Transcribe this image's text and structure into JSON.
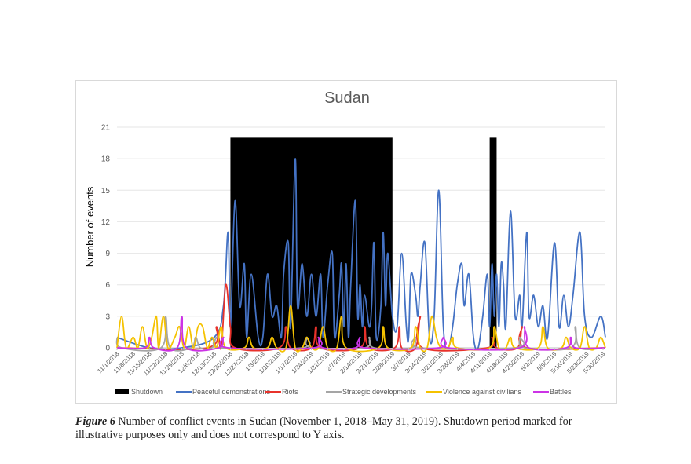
{
  "caption": {
    "label": "Figure 6",
    "text": " Number of conflict events in Sudan (November 1, 2018–May 31, 2019). Shutdown period marked for illustrative purposes only and does not correspond to Y axis."
  },
  "chart_data": {
    "type": "line",
    "title": "Sudan",
    "xlabel": "",
    "ylabel": "Number of events",
    "ylim": [
      0,
      21
    ],
    "yticks": [
      0,
      3,
      6,
      9,
      12,
      15,
      18,
      21
    ],
    "grid": "horizontal",
    "legend_position": "bottom",
    "x_start": "11/1/2018",
    "x_end": "5/31/2019",
    "x_tick_labels": [
      "11/1/2018",
      "11/8/2018",
      "11/15/2018",
      "11/22/2018",
      "11/29/2018",
      "12/6/2018",
      "12/13/2018",
      "12/20/2018",
      "12/27/2018",
      "1/3/2019",
      "1/10/2019",
      "1/17/2019",
      "1/24/2019",
      "1/31/2019",
      "2/7/2019",
      "2/14/2019",
      "2/21/2019",
      "2/28/2019",
      "3/7/2019",
      "3/14/2019",
      "3/21/2019",
      "3/28/2019",
      "4/4/2019",
      "4/11/2019",
      "4/18/2019",
      "4/25/2019",
      "5/2/2019",
      "5/9/2019",
      "5/16/2019",
      "5/23/2019",
      "5/30/2019"
    ],
    "shutdown": {
      "name": "Shutdown",
      "color": "#000000",
      "height": 20,
      "periods": [
        {
          "start": "12/20/2018",
          "end": "2/28/2019"
        },
        {
          "start": "4/11/2019",
          "end": "4/14/2019"
        }
      ]
    },
    "series": [
      {
        "name": "Peaceful demonstrations",
        "color": "#4472c4",
        "points": [
          [
            "11/1/2018",
            1
          ],
          [
            "11/15/2018",
            0
          ],
          [
            "11/29/2018",
            0
          ],
          [
            "12/13/2018",
            1
          ],
          [
            "12/17/2018",
            4
          ],
          [
            "12/19/2018",
            11
          ],
          [
            "12/20/2018",
            2
          ],
          [
            "12/22/2018",
            14
          ],
          [
            "12/24/2018",
            4
          ],
          [
            "12/26/2018",
            8
          ],
          [
            "12/27/2018",
            1
          ],
          [
            "12/29/2018",
            7
          ],
          [
            "1/1/2019",
            1
          ],
          [
            "1/3/2019",
            1
          ],
          [
            "1/5/2019",
            7
          ],
          [
            "1/7/2019",
            3
          ],
          [
            "1/9/2019",
            4
          ],
          [
            "1/11/2019",
            1
          ],
          [
            "1/12/2019",
            7
          ],
          [
            "1/14/2019",
            10
          ],
          [
            "1/15/2019",
            2
          ],
          [
            "1/17/2019",
            18
          ],
          [
            "1/18/2019",
            4
          ],
          [
            "1/20/2019",
            8
          ],
          [
            "1/22/2019",
            3
          ],
          [
            "1/24/2019",
            7
          ],
          [
            "1/26/2019",
            3
          ],
          [
            "1/28/2019",
            7
          ],
          [
            "1/29/2019",
            1
          ],
          [
            "1/31/2019",
            6
          ],
          [
            "2/2/2019",
            9
          ],
          [
            "2/3/2019",
            1
          ],
          [
            "2/5/2019",
            5
          ],
          [
            "2/6/2019",
            8
          ],
          [
            "2/7/2019",
            2
          ],
          [
            "2/8/2019",
            8
          ],
          [
            "2/9/2019",
            1
          ],
          [
            "2/10/2019",
            6
          ],
          [
            "2/12/2019",
            14
          ],
          [
            "2/13/2019",
            3
          ],
          [
            "2/14/2019",
            6
          ],
          [
            "2/15/2019",
            2
          ],
          [
            "2/16/2019",
            5
          ],
          [
            "2/18/2019",
            2
          ],
          [
            "2/19/2019",
            4
          ],
          [
            "2/20/2019",
            10
          ],
          [
            "2/21/2019",
            1
          ],
          [
            "2/23/2019",
            4
          ],
          [
            "2/24/2019",
            11
          ],
          [
            "2/25/2019",
            4
          ],
          [
            "2/26/2019",
            9
          ],
          [
            "2/28/2019",
            3
          ],
          [
            "3/2/2019",
            2
          ],
          [
            "3/4/2019",
            9
          ],
          [
            "3/6/2019",
            2
          ],
          [
            "3/7/2019",
            1
          ],
          [
            "3/8/2019",
            7
          ],
          [
            "3/10/2019",
            5
          ],
          [
            "3/11/2019",
            3
          ],
          [
            "3/12/2019",
            6
          ],
          [
            "3/14/2019",
            10
          ],
          [
            "3/16/2019",
            1
          ],
          [
            "3/18/2019",
            3
          ],
          [
            "3/20/2019",
            15
          ],
          [
            "3/22/2019",
            2
          ],
          [
            "3/24/2019",
            0
          ],
          [
            "3/26/2019",
            2
          ],
          [
            "3/28/2019",
            6
          ],
          [
            "3/30/2019",
            8
          ],
          [
            "3/31/2019",
            4
          ],
          [
            "4/2/2019",
            7
          ],
          [
            "4/4/2019",
            1
          ],
          [
            "4/6/2019",
            0
          ],
          [
            "4/8/2019",
            3
          ],
          [
            "4/10/2019",
            7
          ],
          [
            "4/11/2019",
            2
          ],
          [
            "4/12/2019",
            8
          ],
          [
            "4/13/2019",
            3
          ],
          [
            "4/14/2019",
            7
          ],
          [
            "4/15/2019",
            2
          ],
          [
            "4/16/2019",
            8
          ],
          [
            "4/17/2019",
            6
          ],
          [
            "4/18/2019",
            2
          ],
          [
            "4/20/2019",
            13
          ],
          [
            "4/22/2019",
            3
          ],
          [
            "4/24/2019",
            5
          ],
          [
            "4/25/2019",
            2
          ],
          [
            "4/27/2019",
            11
          ],
          [
            "4/28/2019",
            3
          ],
          [
            "4/30/2019",
            5
          ],
          [
            "5/2/2019",
            2
          ],
          [
            "5/4/2019",
            4
          ],
          [
            "5/6/2019",
            1
          ],
          [
            "5/9/2019",
            10
          ],
          [
            "5/11/2019",
            2
          ],
          [
            "5/13/2019",
            5
          ],
          [
            "5/15/2019",
            2
          ],
          [
            "5/17/2019",
            5
          ],
          [
            "5/20/2019",
            11
          ],
          [
            "5/22/2019",
            3
          ],
          [
            "5/25/2019",
            1
          ],
          [
            "5/29/2019",
            3
          ],
          [
            "5/31/2019",
            1
          ]
        ]
      },
      {
        "name": "Riots",
        "color": "#e8322b",
        "points": [
          [
            "11/1/2018",
            0
          ],
          [
            "12/10/2018",
            0
          ],
          [
            "12/14/2018",
            2
          ],
          [
            "12/16/2018",
            0
          ],
          [
            "12/18/2018",
            6
          ],
          [
            "12/20/2018",
            2
          ],
          [
            "12/22/2018",
            0
          ],
          [
            "1/10/2019",
            0
          ],
          [
            "1/13/2019",
            2
          ],
          [
            "1/15/2019",
            0
          ],
          [
            "1/24/2019",
            0
          ],
          [
            "1/26/2019",
            2
          ],
          [
            "1/28/2019",
            0
          ],
          [
            "2/14/2019",
            0
          ],
          [
            "2/16/2019",
            2
          ],
          [
            "2/18/2019",
            0
          ],
          [
            "3/1/2019",
            0
          ],
          [
            "3/3/2019",
            2
          ],
          [
            "3/4/2019",
            0
          ],
          [
            "3/10/2019",
            0
          ],
          [
            "3/12/2019",
            3
          ],
          [
            "3/13/2019",
            0
          ],
          [
            "4/10/2019",
            0
          ],
          [
            "4/12/2019",
            1
          ],
          [
            "4/14/2019",
            0
          ],
          [
            "4/23/2019",
            0
          ],
          [
            "4/25/2019",
            2
          ],
          [
            "4/27/2019",
            0
          ],
          [
            "5/31/2019",
            0
          ]
        ]
      },
      {
        "name": "Strategic developments",
        "color": "#a5a5a5",
        "points": [
          [
            "11/1/2018",
            1
          ],
          [
            "11/3/2018",
            0
          ],
          [
            "11/20/2018",
            0
          ],
          [
            "11/22/2018",
            3
          ],
          [
            "11/24/2018",
            0
          ],
          [
            "12/3/2018",
            0
          ],
          [
            "12/5/2018",
            1
          ],
          [
            "12/7/2018",
            0
          ],
          [
            "12/12/2018",
            0
          ],
          [
            "12/14/2018",
            1
          ],
          [
            "12/16/2018",
            0
          ],
          [
            "1/20/2019",
            0
          ],
          [
            "1/22/2019",
            1
          ],
          [
            "1/24/2019",
            0
          ],
          [
            "2/16/2019",
            0
          ],
          [
            "2/18/2019",
            1
          ],
          [
            "2/20/2019",
            0
          ],
          [
            "3/8/2019",
            0
          ],
          [
            "3/10/2019",
            1
          ],
          [
            "3/12/2019",
            0
          ],
          [
            "4/22/2019",
            0
          ],
          [
            "4/24/2019",
            1
          ],
          [
            "4/26/2019",
            0
          ],
          [
            "5/16/2019",
            0
          ],
          [
            "5/18/2019",
            2
          ],
          [
            "5/20/2019",
            0
          ],
          [
            "5/31/2019",
            0
          ]
        ]
      },
      {
        "name": "Violence against civilians",
        "color": "#f5c200",
        "points": [
          [
            "11/1/2018",
            0
          ],
          [
            "11/3/2018",
            3
          ],
          [
            "11/5/2018",
            0
          ],
          [
            "11/8/2018",
            1
          ],
          [
            "11/10/2018",
            0
          ],
          [
            "11/12/2018",
            2
          ],
          [
            "11/14/2018",
            0
          ],
          [
            "11/16/2018",
            1
          ],
          [
            "11/18/2018",
            3
          ],
          [
            "11/19/2018",
            0
          ],
          [
            "11/21/2018",
            3
          ],
          [
            "11/23/2018",
            0
          ],
          [
            "11/26/2018",
            1
          ],
          [
            "11/28/2018",
            2
          ],
          [
            "11/30/2018",
            0
          ],
          [
            "12/2/2018",
            2
          ],
          [
            "12/4/2018",
            0
          ],
          [
            "12/6/2018",
            2
          ],
          [
            "12/8/2018",
            2
          ],
          [
            "12/10/2018",
            0
          ],
          [
            "12/12/2018",
            1
          ],
          [
            "12/14/2018",
            0
          ],
          [
            "12/16/2018",
            2
          ],
          [
            "12/18/2018",
            0
          ],
          [
            "12/26/2018",
            0
          ],
          [
            "12/28/2018",
            1
          ],
          [
            "12/30/2018",
            0
          ],
          [
            "1/5/2019",
            0
          ],
          [
            "1/7/2019",
            1
          ],
          [
            "1/9/2019",
            0
          ],
          [
            "1/13/2019",
            0
          ],
          [
            "1/15/2019",
            4
          ],
          [
            "1/17/2019",
            0
          ],
          [
            "1/20/2019",
            0
          ],
          [
            "1/22/2019",
            1
          ],
          [
            "1/24/2019",
            0
          ],
          [
            "1/27/2019",
            0
          ],
          [
            "1/29/2019",
            2
          ],
          [
            "1/31/2019",
            0
          ],
          [
            "2/4/2019",
            0
          ],
          [
            "2/6/2019",
            3
          ],
          [
            "2/8/2019",
            0
          ],
          [
            "2/22/2019",
            0
          ],
          [
            "2/24/2019",
            2
          ],
          [
            "2/26/2019",
            0
          ],
          [
            "3/8/2019",
            0
          ],
          [
            "3/10/2019",
            2
          ],
          [
            "3/12/2019",
            0
          ],
          [
            "3/15/2019",
            0
          ],
          [
            "3/17/2019",
            3
          ],
          [
            "3/19/2019",
            1
          ],
          [
            "3/21/2019",
            0
          ],
          [
            "3/24/2019",
            0
          ],
          [
            "3/26/2019",
            1
          ],
          [
            "3/28/2019",
            0
          ],
          [
            "4/11/2019",
            0
          ],
          [
            "4/13/2019",
            2
          ],
          [
            "4/15/2019",
            0
          ],
          [
            "4/18/2019",
            0
          ],
          [
            "4/20/2019",
            1
          ],
          [
            "4/22/2019",
            0
          ],
          [
            "5/2/2019",
            0
          ],
          [
            "5/4/2019",
            2
          ],
          [
            "5/6/2019",
            0
          ],
          [
            "5/12/2019",
            0
          ],
          [
            "5/14/2019",
            1
          ],
          [
            "5/16/2019",
            0
          ],
          [
            "5/20/2019",
            0
          ],
          [
            "5/22/2019",
            2
          ],
          [
            "5/24/2019",
            0
          ],
          [
            "5/27/2019",
            0
          ],
          [
            "5/29/2019",
            1
          ],
          [
            "5/31/2019",
            0
          ]
        ]
      },
      {
        "name": "Battles",
        "color": "#cc33e6",
        "points": [
          [
            "11/1/2018",
            0
          ],
          [
            "11/13/2018",
            0
          ],
          [
            "11/15/2018",
            1
          ],
          [
            "11/17/2018",
            0
          ],
          [
            "11/27/2018",
            0
          ],
          [
            "11/29/2018",
            3
          ],
          [
            "12/1/2018",
            0
          ],
          [
            "12/15/2018",
            0
          ],
          [
            "12/17/2018",
            1
          ],
          [
            "12/19/2018",
            0
          ],
          [
            "1/25/2019",
            0
          ],
          [
            "1/27/2019",
            1
          ],
          [
            "1/29/2019",
            0
          ],
          [
            "2/12/2019",
            0
          ],
          [
            "2/14/2019",
            1
          ],
          [
            "2/16/2019",
            0
          ],
          [
            "3/20/2019",
            0
          ],
          [
            "3/22/2019",
            1
          ],
          [
            "3/24/2019",
            0
          ],
          [
            "4/24/2019",
            0
          ],
          [
            "4/26/2019",
            2
          ],
          [
            "4/28/2019",
            0
          ],
          [
            "5/14/2019",
            0
          ],
          [
            "5/16/2019",
            1
          ],
          [
            "5/18/2019",
            0
          ],
          [
            "5/31/2019",
            0
          ]
        ]
      }
    ]
  }
}
